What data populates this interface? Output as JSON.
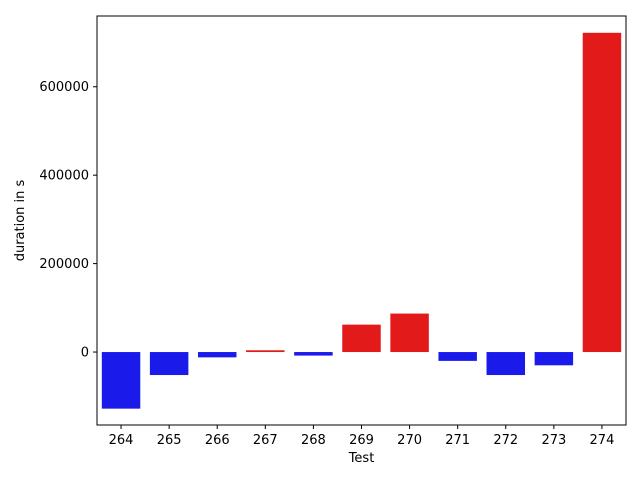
{
  "chart_data": {
    "type": "bar",
    "title": "",
    "xlabel": "Test",
    "ylabel": "duration in s",
    "categories": [
      "264",
      "265",
      "266",
      "267",
      "268",
      "269",
      "270",
      "271",
      "272",
      "273",
      "274"
    ],
    "values": [
      -128000,
      -52000,
      -12000,
      4000,
      -8000,
      62000,
      87000,
      -20000,
      -52000,
      -30000,
      722000
    ],
    "bar_colors": [
      "#1a1aeb",
      "#1a1aeb",
      "#1a1aeb",
      "#e31a1a",
      "#1a1aeb",
      "#e31a1a",
      "#e31a1a",
      "#1a1aeb",
      "#1a1aeb",
      "#1a1aeb",
      "#e31a1a"
    ],
    "ylim": [
      -165000,
      760000
    ],
    "yticks": [
      0,
      200000,
      400000,
      600000
    ],
    "ytick_labels": [
      "0",
      "200000",
      "400000",
      "600000"
    ],
    "grid": false,
    "legend": "none"
  }
}
